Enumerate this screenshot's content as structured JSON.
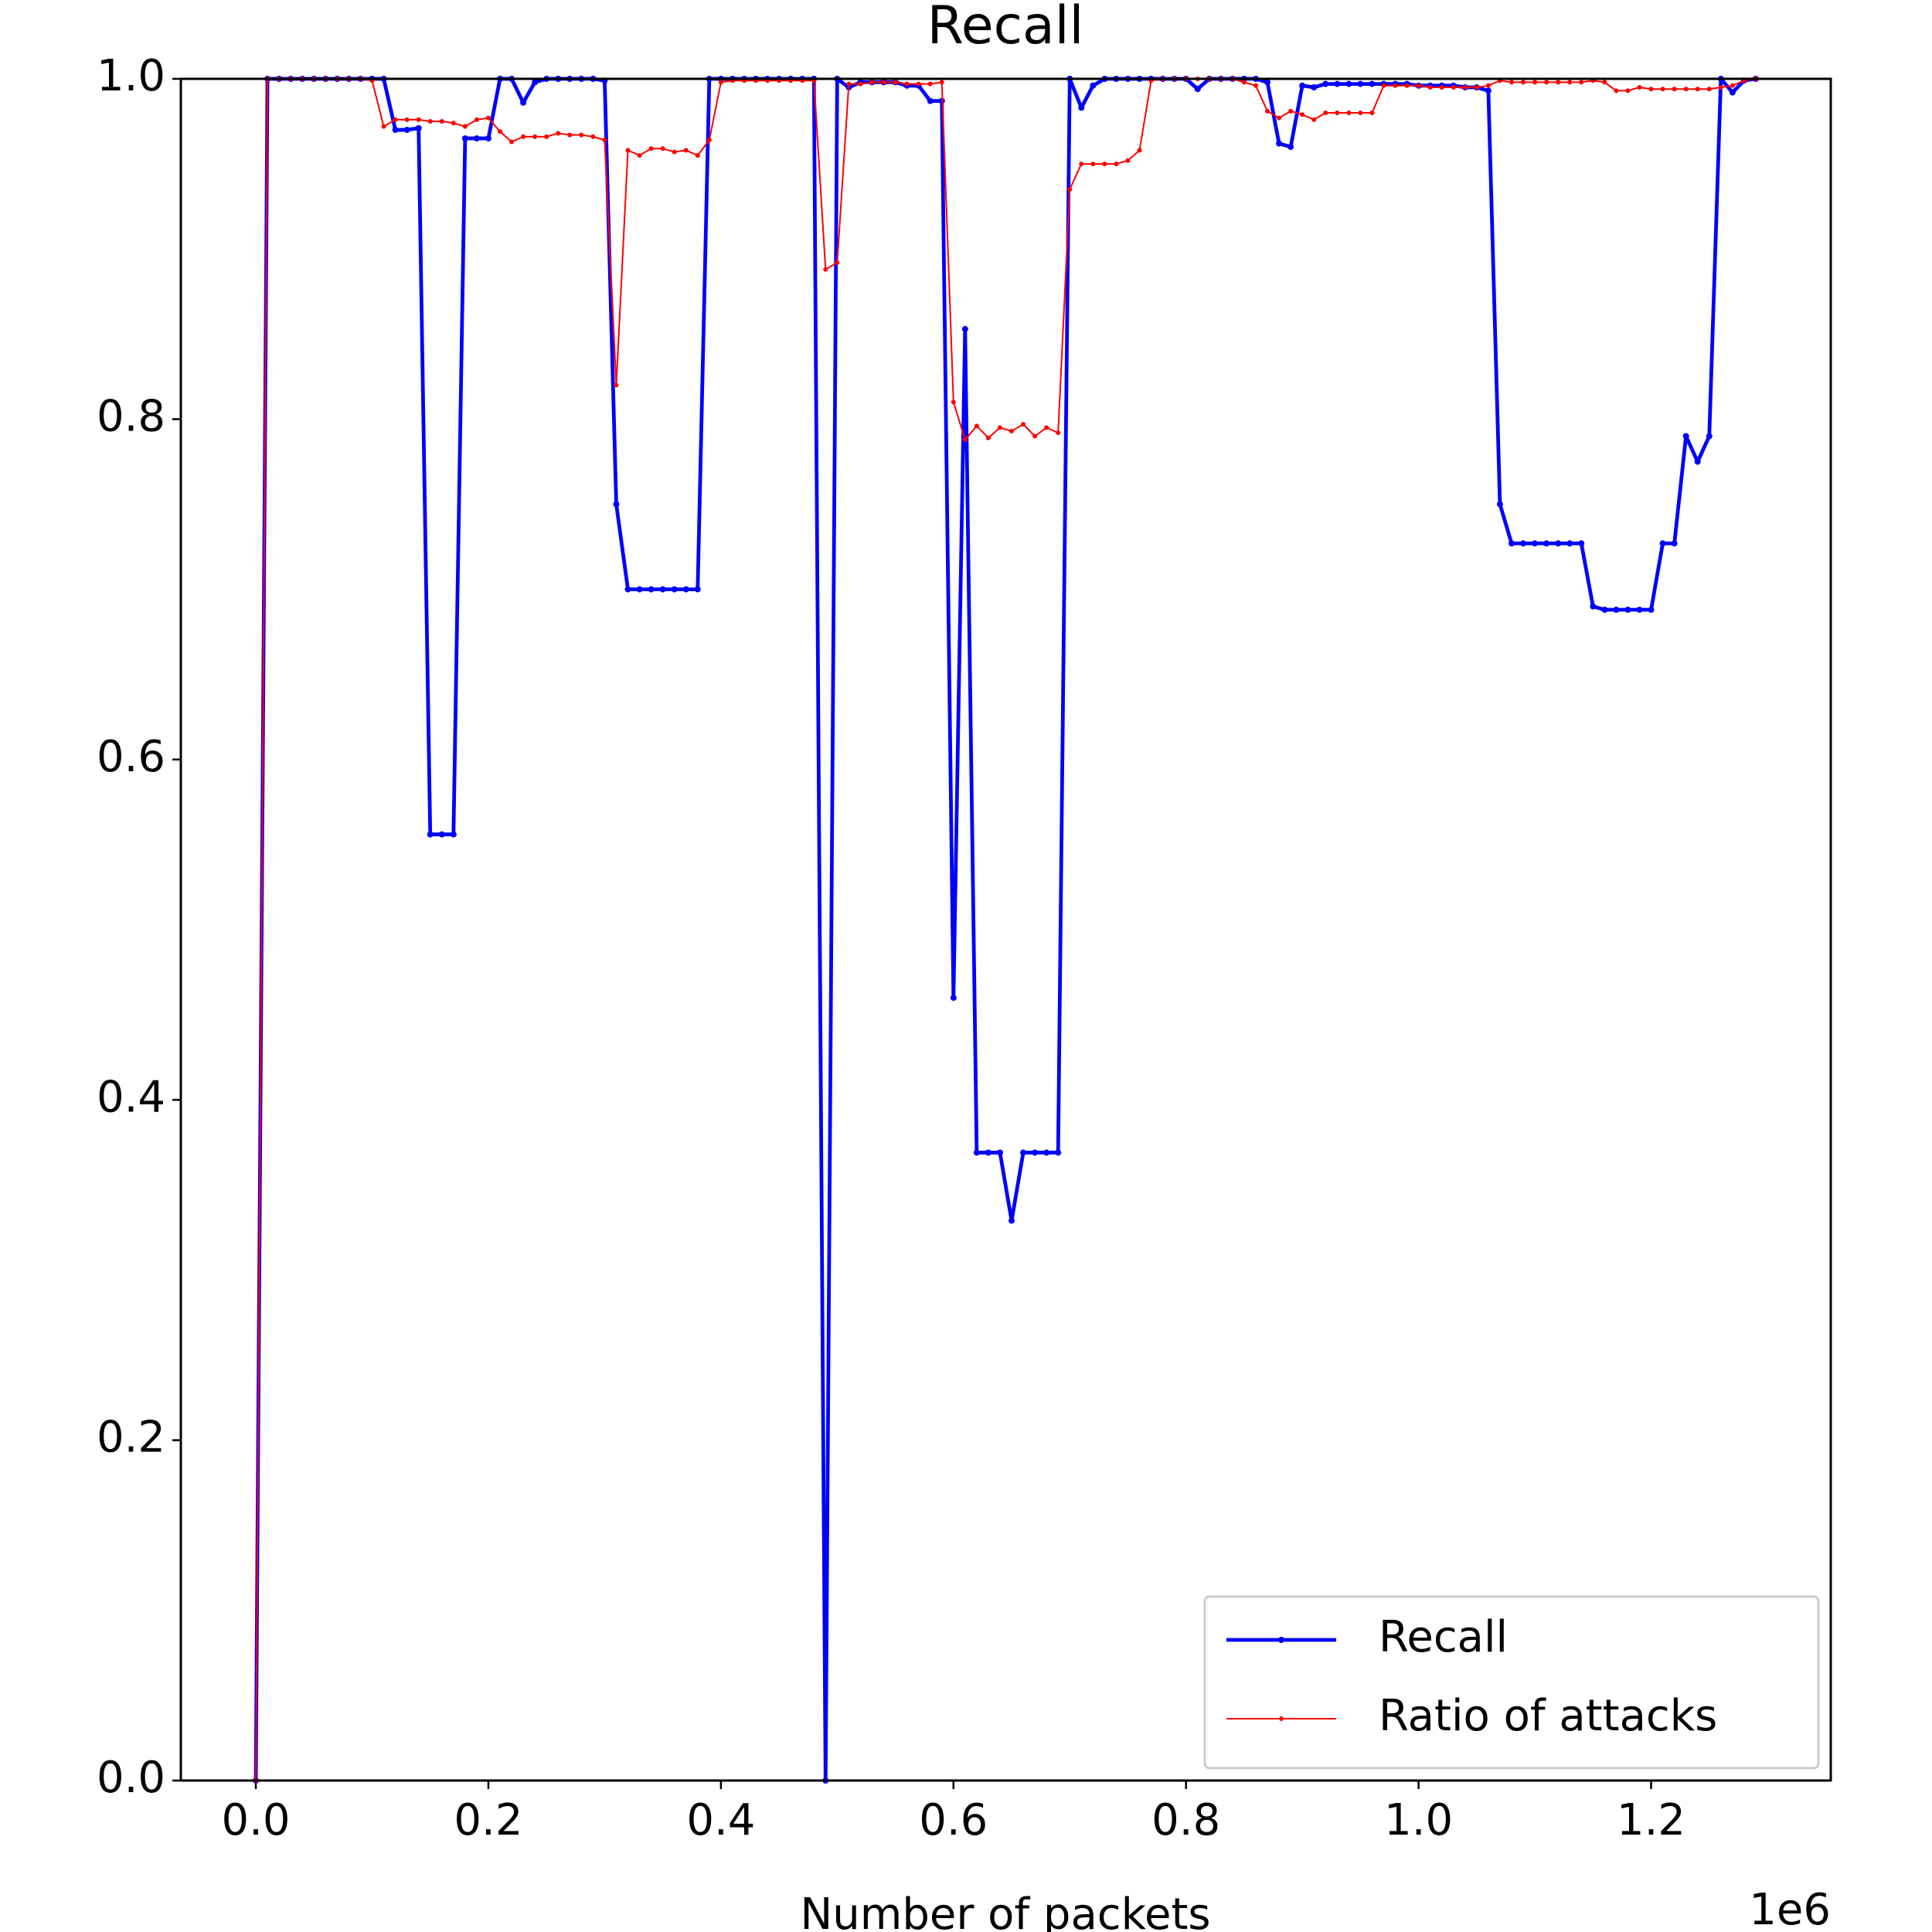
{
  "chart_data": {
    "type": "line",
    "title": "Recall",
    "xlabel": "Number of packets",
    "x_offset_text": "1e6",
    "x": [
      0,
      10000,
      20000,
      30000,
      40000,
      50000,
      60000,
      70000,
      80000,
      90000,
      100000,
      110000,
      120000,
      130000,
      140000,
      150000,
      160000,
      170000,
      180000,
      190000,
      200000,
      210000,
      220000,
      230000,
      240000,
      250000,
      260000,
      270000,
      280000,
      290000,
      300000,
      310000,
      320000,
      330000,
      340000,
      350000,
      360000,
      370000,
      380000,
      390000,
      400000,
      410000,
      420000,
      430000,
      440000,
      450000,
      460000,
      470000,
      480000,
      490000,
      500000,
      510000,
      520000,
      530000,
      540000,
      550000,
      560000,
      570000,
      580000,
      590000,
      600000,
      610000,
      620000,
      630000,
      640000,
      650000,
      660000,
      670000,
      680000,
      690000,
      700000,
      710000,
      720000,
      730000,
      740000,
      750000,
      760000,
      770000,
      780000,
      790000,
      800000,
      810000,
      820000,
      830000,
      840000,
      850000,
      860000,
      870000,
      880000,
      890000,
      900000,
      910000,
      920000,
      930000,
      940000,
      950000,
      960000,
      970000,
      980000,
      990000,
      1000000,
      1010000,
      1020000,
      1030000,
      1040000,
      1050000,
      1060000,
      1070000,
      1080000,
      1090000,
      1100000,
      1110000,
      1120000,
      1130000,
      1140000,
      1150000,
      1160000,
      1170000,
      1180000,
      1190000,
      1200000,
      1210000,
      1220000,
      1230000,
      1240000,
      1250000,
      1260000,
      1270000,
      1280000,
      1290000
    ],
    "series": [
      {
        "name": "Recall",
        "color": "#0000ff",
        "values": [
          0,
          1,
          1,
          1,
          1,
          1,
          1,
          1,
          1,
          1,
          1,
          1,
          0.97,
          0.97,
          0.971,
          0.556,
          0.556,
          0.556,
          0.965,
          0.965,
          0.965,
          1,
          1,
          0.986,
          0.998,
          1,
          1,
          1,
          1,
          1,
          0.999,
          0.75,
          0.7,
          0.7,
          0.7,
          0.7,
          0.7,
          0.7,
          0.7,
          1,
          1,
          1,
          1,
          1,
          1,
          1,
          1,
          1,
          1,
          0,
          1,
          0.995,
          0.998,
          0.998,
          0.998,
          0.998,
          0.996,
          0.996,
          0.987,
          0.987,
          0.46,
          0.853,
          0.369,
          0.369,
          0.369,
          0.329,
          0.369,
          0.369,
          0.369,
          0.369,
          1,
          0.983,
          0.996,
          1,
          1,
          1,
          1,
          1,
          1,
          1,
          1,
          0.994,
          1,
          1,
          1,
          1,
          1,
          0.998,
          0.962,
          0.96,
          0.996,
          0.995,
          0.997,
          0.997,
          0.997,
          0.997,
          0.997,
          0.997,
          0.997,
          0.997,
          0.996,
          0.996,
          0.996,
          0.996,
          0.995,
          0.995,
          0.993,
          0.75,
          0.727,
          0.727,
          0.727,
          0.727,
          0.727,
          0.727,
          0.727,
          0.69,
          0.688,
          0.688,
          0.688,
          0.688,
          0.688,
          0.727,
          0.727,
          0.79,
          0.775,
          0.79,
          1,
          0.992,
          0.999,
          1
        ]
      },
      {
        "name": "Ratio of attacks",
        "color": "#ff0000",
        "values": [
          0,
          1,
          1,
          1,
          1,
          1,
          1,
          1,
          1,
          1,
          0.999,
          0.972,
          0.976,
          0.976,
          0.976,
          0.975,
          0.975,
          0.974,
          0.972,
          0.976,
          0.977,
          0.969,
          0.963,
          0.966,
          0.966,
          0.966,
          0.968,
          0.967,
          0.967,
          0.966,
          0.964,
          0.82,
          0.958,
          0.955,
          0.959,
          0.959,
          0.957,
          0.958,
          0.955,
          0.964,
          0.998,
          0.999,
          0.999,
          0.999,
          0.999,
          0.999,
          0.999,
          0.999,
          0.999,
          0.888,
          0.892,
          0.997,
          0.997,
          0.998,
          0.998,
          0.998,
          0.997,
          0.997,
          0.997,
          0.998,
          0.81,
          0.788,
          0.796,
          0.789,
          0.795,
          0.793,
          0.797,
          0.79,
          0.795,
          0.792,
          0.935,
          0.95,
          0.95,
          0.95,
          0.95,
          0.952,
          0.958,
          0.999,
          1,
          1,
          1,
          1,
          1,
          1,
          1,
          0.998,
          0.996,
          0.981,
          0.977,
          0.981,
          0.979,
          0.976,
          0.98,
          0.98,
          0.98,
          0.98,
          0.98,
          0.996,
          0.996,
          0.996,
          0.996,
          0.995,
          0.995,
          0.995,
          0.995,
          0.995,
          0.996,
          0.999,
          0.998,
          0.998,
          0.998,
          0.998,
          0.998,
          0.998,
          0.998,
          0.999,
          0.998,
          0.993,
          0.993,
          0.995,
          0.994,
          0.994,
          0.994,
          0.994,
          0.994,
          0.994,
          0.995,
          0.996,
          0.999,
          1
        ]
      }
    ],
    "xlim": [
      -64500,
      1354500
    ],
    "xticks": [
      {
        "value": 0,
        "label": "0.0"
      },
      {
        "value": 200000,
        "label": "0.2"
      },
      {
        "value": 400000,
        "label": "0.4"
      },
      {
        "value": 600000,
        "label": "0.6"
      },
      {
        "value": 800000,
        "label": "0.8"
      },
      {
        "value": 1000000,
        "label": "1.0"
      },
      {
        "value": 1200000,
        "label": "1.2"
      }
    ],
    "ylim": [
      0,
      1
    ],
    "yticks": [
      {
        "value": 0,
        "label": "0.0"
      },
      0.2,
      0.4,
      0.6,
      0.8,
      {
        "value": 1,
        "label": "1.0"
      }
    ],
    "legend": "lower right"
  }
}
